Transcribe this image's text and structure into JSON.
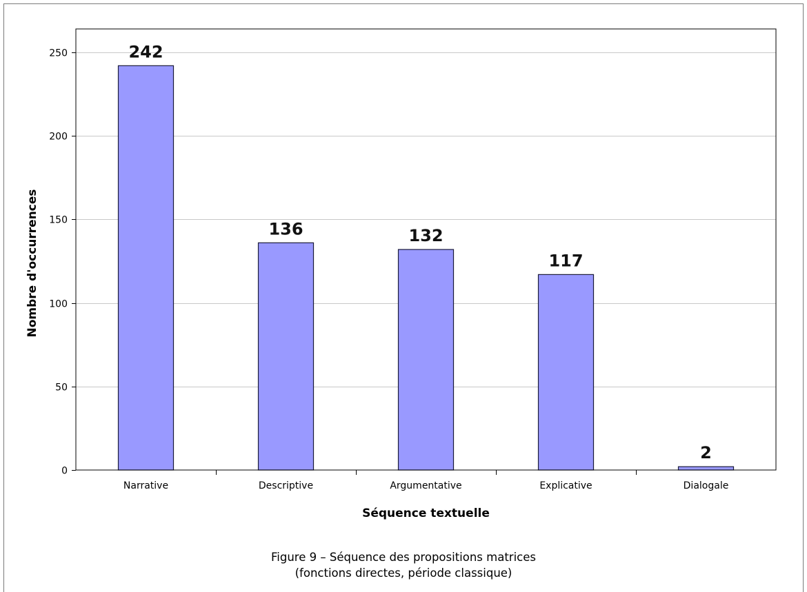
{
  "chart_data": {
    "type": "bar",
    "categories": [
      "Narrative",
      "Descriptive",
      "Argumentative",
      "Explicative",
      "Dialogale"
    ],
    "values": [
      242,
      136,
      132,
      117,
      2
    ],
    "data_labels": [
      "242",
      "136",
      "132",
      "117",
      "2"
    ],
    "xlabel": "Séquence textuelle",
    "ylabel": "Nombre d'occurrences",
    "ylim": [
      0,
      250
    ],
    "yticks": [
      0,
      50,
      100,
      150,
      200,
      250
    ],
    "grid": true,
    "legend": "none",
    "colors": {
      "bar_fill": "#9999ff",
      "bar_stroke": "#1a1a3a",
      "grid": "#c8c8c8",
      "axis": "#000000"
    }
  },
  "caption": {
    "line1": "Figure 9 – Séquence des propositions matrices",
    "line2": "(fonctions directes, période classique)"
  }
}
